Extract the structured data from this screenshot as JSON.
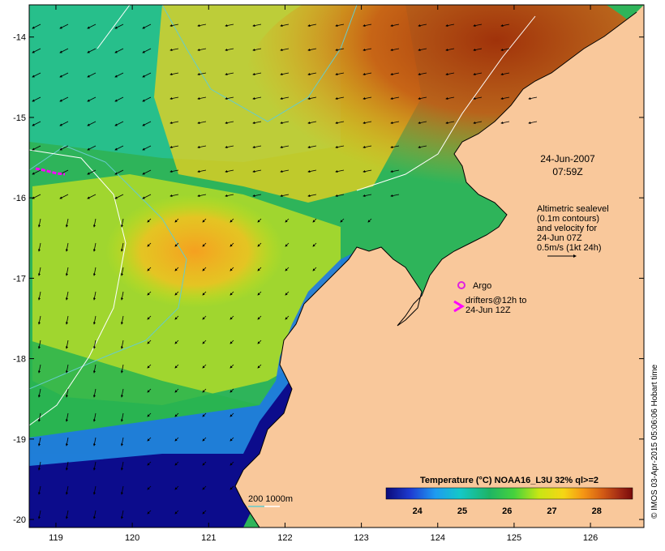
{
  "map": {
    "lon_range": [
      118.65,
      126.7
    ],
    "lat_range": [
      -20.1,
      -13.6
    ],
    "lon_ticks": [
      "119",
      "120",
      "121",
      "122",
      "123",
      "124",
      "125",
      "126"
    ],
    "lat_ticks": [
      "-14",
      "-15",
      "-16",
      "-17",
      "-18",
      "-19",
      "-20"
    ],
    "colors": {
      "land": "#f9c89b",
      "coastline": "#000000",
      "contour_200m": "#66cccc",
      "contour_1000m": "#ffffff",
      "argo": "#e020e0",
      "drifter": "#ff00ff"
    }
  },
  "annotations": {
    "date": "24-Jun-2007",
    "time": "07:59Z",
    "altimetry_lines": [
      "Altimetric sealevel",
      "(0.1m contours)",
      "and velocity for",
      "24-Jun 07Z",
      "0.5m/s (1kt 24h)"
    ],
    "argo_label": "Argo",
    "drifters_lines": [
      "drifters@12h to",
      "24-Jun 12Z"
    ],
    "depth_label": "200  1000m"
  },
  "colorbar": {
    "title": "Temperature (°C) NOAA16_L3U 32% ql>=2",
    "range": [
      23.3,
      28.8
    ],
    "tick_labels": [
      "24",
      "25",
      "26",
      "27",
      "28"
    ],
    "tick_values": [
      24,
      25,
      26,
      27,
      28
    ]
  },
  "credit": "© IMOS 03-Apr-2015 05:06:06 Hobart time"
}
